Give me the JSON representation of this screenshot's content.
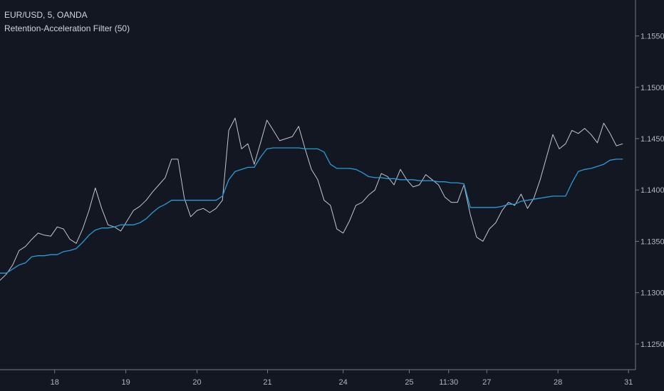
{
  "legend": {
    "symbol": "EUR/USD, 5, OANDA",
    "indicator": "Retention-Acceleration Filter (50)"
  },
  "colors": {
    "background": "#131722",
    "price": "#c3c6cf",
    "filter": "#2a9bd5",
    "axis_text": "#b2b5be",
    "axis_line": "#787b86"
  },
  "chart_data": {
    "type": "line",
    "title": "EUR/USD, 5, OANDA",
    "xlabel": "",
    "ylabel": "",
    "ylim": [
      1.1225,
      1.1585
    ],
    "xlim": [
      0,
      100
    ],
    "grid": false,
    "legend": "top-left",
    "y_ticks": [
      1.125,
      1.13,
      1.135,
      1.14,
      1.145,
      1.15,
      1.155
    ],
    "y_tick_labels": [
      "1.12500",
      "1.13000",
      "1.13500",
      "1.14000",
      "1.14500",
      "1.15000",
      "1.15500"
    ],
    "x_ticks": [
      {
        "x": 8.6,
        "label": "18"
      },
      {
        "x": 19.8,
        "label": "19"
      },
      {
        "x": 31.0,
        "label": "20"
      },
      {
        "x": 42.1,
        "label": "21"
      },
      {
        "x": 54.0,
        "label": "24"
      },
      {
        "x": 64.4,
        "label": "25"
      },
      {
        "x": 70.6,
        "label": "11:30"
      },
      {
        "x": 76.6,
        "label": "27"
      },
      {
        "x": 87.8,
        "label": "28"
      },
      {
        "x": 98.9,
        "label": "31"
      }
    ],
    "series": [
      {
        "name": "EUR/USD",
        "x": [
          0,
          1,
          2,
          3,
          4,
          5,
          6,
          7,
          8,
          9,
          10,
          11,
          12,
          13,
          14,
          15,
          16,
          17,
          18,
          19,
          20,
          21,
          22,
          23,
          24,
          25,
          26,
          27,
          28,
          29,
          30,
          31,
          32,
          33,
          34,
          35,
          36,
          37,
          38,
          39,
          40,
          41,
          42,
          43,
          44,
          45,
          46,
          47,
          48,
          49,
          50,
          51,
          52,
          53,
          54,
          55,
          56,
          57,
          58,
          59,
          60,
          61,
          62,
          63,
          64,
          65,
          66,
          67,
          68,
          69,
          70,
          71,
          72,
          73,
          74,
          75,
          76,
          77,
          78,
          79,
          80,
          81,
          82,
          83,
          84,
          85,
          86,
          87,
          88,
          89,
          90,
          91,
          92,
          93,
          94,
          95,
          96,
          97,
          98
        ],
        "y": [
          1.1312,
          1.1318,
          1.1327,
          1.1341,
          1.1345,
          1.1352,
          1.1358,
          1.1356,
          1.1355,
          1.1364,
          1.1362,
          1.1352,
          1.1348,
          1.1362,
          1.138,
          1.1402,
          1.1382,
          1.1366,
          1.1364,
          1.136,
          1.137,
          1.138,
          1.1384,
          1.139,
          1.1398,
          1.1405,
          1.1412,
          1.143,
          1.143,
          1.1392,
          1.1374,
          1.138,
          1.1382,
          1.1378,
          1.1382,
          1.139,
          1.1458,
          1.147,
          1.144,
          1.1445,
          1.1425,
          1.1446,
          1.1468,
          1.1458,
          1.1448,
          1.145,
          1.1452,
          1.1462,
          1.144,
          1.142,
          1.141,
          1.139,
          1.1385,
          1.1362,
          1.1358,
          1.137,
          1.1385,
          1.1388,
          1.1395,
          1.14,
          1.1416,
          1.1413,
          1.1405,
          1.142,
          1.141,
          1.1403,
          1.1405,
          1.1415,
          1.141,
          1.1405,
          1.1393,
          1.1388,
          1.1388,
          1.1405,
          1.1376,
          1.1354,
          1.135,
          1.1362,
          1.1368,
          1.138,
          1.1388,
          1.1385,
          1.1396,
          1.1382,
          1.1392,
          1.141,
          1.1432,
          1.1454,
          1.144,
          1.1445,
          1.1458,
          1.1455,
          1.146,
          1.1454,
          1.1446,
          1.1465,
          1.1455,
          1.1443,
          1.1445
        ]
      },
      {
        "name": "Retention-Acceleration Filter (50)",
        "x": [
          0,
          1,
          2,
          3,
          4,
          5,
          6,
          7,
          8,
          9,
          10,
          11,
          12,
          13,
          14,
          15,
          16,
          17,
          18,
          19,
          20,
          21,
          22,
          23,
          24,
          25,
          26,
          27,
          28,
          29,
          30,
          31,
          32,
          33,
          34,
          35,
          36,
          37,
          38,
          39,
          40,
          41,
          42,
          43,
          44,
          45,
          46,
          47,
          48,
          49,
          50,
          51,
          52,
          53,
          54,
          55,
          56,
          57,
          58,
          59,
          60,
          61,
          62,
          63,
          64,
          65,
          66,
          67,
          68,
          69,
          70,
          71,
          72,
          73,
          74,
          75,
          76,
          77,
          78,
          79,
          80,
          81,
          82,
          83,
          84,
          85,
          86,
          87,
          88,
          89,
          90,
          91,
          92,
          93,
          94,
          95,
          96,
          97,
          98
        ],
        "y": [
          1.1319,
          1.1319,
          1.1323,
          1.1327,
          1.1329,
          1.1335,
          1.1336,
          1.1336,
          1.1337,
          1.1337,
          1.134,
          1.1341,
          1.1343,
          1.1349,
          1.1356,
          1.1361,
          1.1363,
          1.1363,
          1.1364,
          1.1366,
          1.1366,
          1.1366,
          1.1368,
          1.1372,
          1.1378,
          1.1383,
          1.1386,
          1.139,
          1.139,
          1.139,
          1.139,
          1.139,
          1.139,
          1.139,
          1.139,
          1.1394,
          1.141,
          1.1418,
          1.142,
          1.1422,
          1.1422,
          1.1432,
          1.144,
          1.1441,
          1.1441,
          1.1441,
          1.1441,
          1.1441,
          1.144,
          1.144,
          1.144,
          1.1437,
          1.1425,
          1.1421,
          1.1421,
          1.1421,
          1.142,
          1.1417,
          1.1413,
          1.1412,
          1.1412,
          1.1411,
          1.1411,
          1.141,
          1.141,
          1.141,
          1.1409,
          1.1409,
          1.1409,
          1.1408,
          1.1408,
          1.1407,
          1.1407,
          1.1406,
          1.1383,
          1.1383,
          1.1383,
          1.1383,
          1.1383,
          1.1384,
          1.1386,
          1.1386,
          1.1389,
          1.139,
          1.1391,
          1.1392,
          1.1393,
          1.1394,
          1.1394,
          1.1394,
          1.1407,
          1.1418,
          1.142,
          1.1421,
          1.1423,
          1.1425,
          1.1429,
          1.143,
          1.143
        ]
      }
    ]
  }
}
